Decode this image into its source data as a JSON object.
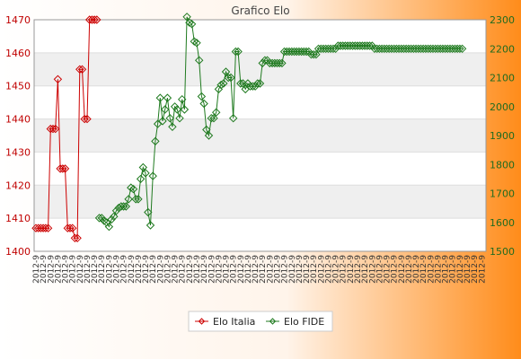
{
  "chart_data": {
    "type": "line",
    "title": "Grafico Elo",
    "x_tick_label": "2012-9",
    "y_left_range": [
      1400,
      1470
    ],
    "y_left_ticks": [
      1400,
      1410,
      1420,
      1430,
      1440,
      1450,
      1460,
      1470
    ],
    "y_right_range": [
      1500,
      2300
    ],
    "y_right_ticks": [
      1500,
      1600,
      1700,
      1800,
      1900,
      2000,
      2100,
      2200,
      2300
    ],
    "grid": "horizontal",
    "legend_position": "bottom",
    "colors": {
      "italia": "#cc0000",
      "fide": "#1f7a1f",
      "bg_left": "#ffffff",
      "bg_right": "#ff8c1a",
      "band": "#efefef"
    },
    "series": [
      {
        "name": "Elo Italia",
        "axis": "left",
        "values": [
          1407,
          1407,
          1407,
          1407,
          1407,
          1407,
          1437,
          1437,
          1437,
          1452,
          1425,
          1425,
          1425,
          1407,
          1407,
          1407,
          1404,
          1404,
          1455,
          1455,
          1440,
          1440,
          1470,
          1470,
          1470,
          1470
        ]
      },
      {
        "name": "Elo FIDE",
        "axis": "right",
        "start_index": 26,
        "values": [
          1615,
          1615,
          1605,
          1600,
          1585,
          1610,
          1620,
          1640,
          1650,
          1655,
          1655,
          1655,
          1680,
          1720,
          1715,
          1680,
          1680,
          1750,
          1790,
          1770,
          1635,
          1590,
          1760,
          1880,
          1940,
          2030,
          1950,
          1990,
          2030,
          1960,
          1930,
          2000,
          1990,
          1960,
          2025,
          1990,
          2310,
          2290,
          2285,
          2225,
          2220,
          2160,
          2035,
          2010,
          1920,
          1900,
          1960,
          1960,
          1980,
          2060,
          2075,
          2080,
          2120,
          2100,
          2100,
          1960,
          2190,
          2190,
          2080,
          2080,
          2060,
          2080,
          2070,
          2070,
          2070,
          2080,
          2080,
          2150,
          2160,
          2160,
          2150,
          2150,
          2150,
          2150,
          2150,
          2150,
          2190,
          2190,
          2190,
          2190,
          2190,
          2190,
          2190,
          2190,
          2190,
          2190,
          2190,
          2180,
          2180,
          2180,
          2200,
          2200,
          2200,
          2200,
          2200,
          2200,
          2200,
          2200,
          2210,
          2210,
          2210,
          2210,
          2210,
          2210,
          2210,
          2210,
          2210,
          2210,
          2210,
          2210,
          2210,
          2210,
          2210,
          2200,
          2200,
          2200,
          2200,
          2200,
          2200,
          2200,
          2200,
          2200,
          2200,
          2200,
          2200,
          2200,
          2200,
          2200,
          2200,
          2200,
          2200,
          2200,
          2200,
          2200,
          2200,
          2200,
          2200,
          2200,
          2200,
          2200,
          2200,
          2200,
          2200,
          2200,
          2200,
          2200,
          2200,
          2200,
          2200,
          2200
        ]
      }
    ],
    "total_points": 185
  }
}
